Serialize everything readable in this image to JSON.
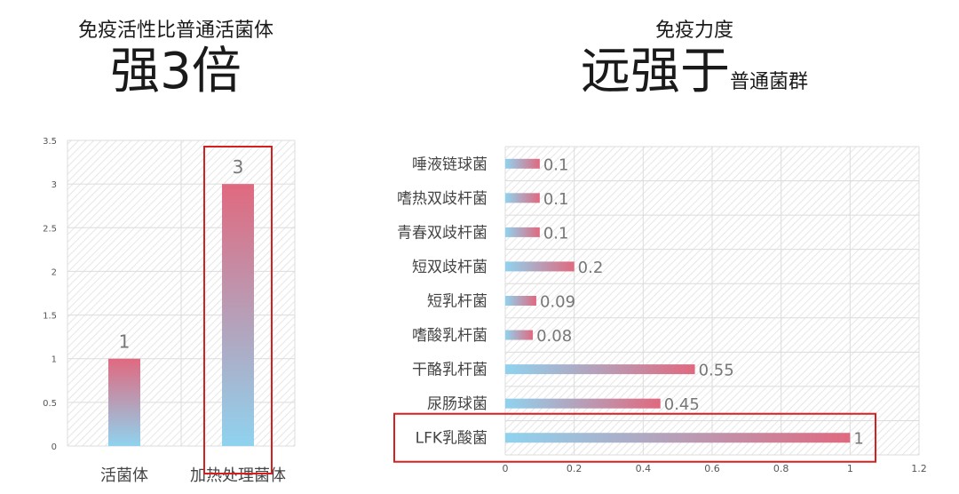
{
  "left": {
    "subtitle": "免疫活性比普通活菌体",
    "headline": "强3倍"
  },
  "right": {
    "subtitle": "免疫力度",
    "headline": "远强于",
    "headline_suffix": "普通菌群"
  },
  "colors": {
    "bar_top": "#e0697f",
    "bar_bottom": "#8fd3ef",
    "highlight": "#d42020",
    "grid": "#dcdcdc",
    "hatch": "#e6e6e6"
  },
  "chart_data": [
    {
      "type": "bar",
      "categories": [
        "活菌体",
        "加热处理菌体"
      ],
      "values": [
        1,
        3
      ],
      "ylim": [
        0,
        3.5
      ],
      "yticks": [
        "0",
        "0.5",
        "1",
        "1.5",
        "2",
        "2.5",
        "3",
        "3.5"
      ],
      "data_labels": [
        "1",
        "3"
      ],
      "highlighted_category": "加热处理菌体",
      "grid": true
    },
    {
      "type": "bar",
      "orientation": "horizontal",
      "categories": [
        "唾液链球菌",
        "嗜热双歧杆菌",
        "青春双歧杆菌",
        "短双歧杆菌",
        "短乳杆菌",
        "嗜酸乳杆菌",
        "干酪乳杆菌",
        "尿肠球菌",
        "LFK乳酸菌"
      ],
      "values": [
        0.1,
        0.1,
        0.1,
        0.2,
        0.09,
        0.08,
        0.55,
        0.45,
        1
      ],
      "data_labels": [
        "0.1",
        "0.1",
        "0.1",
        "0.2",
        "0.09",
        "0.08",
        "0.55",
        "0.45",
        "1"
      ],
      "xlim": [
        0,
        1.2
      ],
      "xticks": [
        "0",
        "0.2",
        "0.4",
        "0.6",
        "0.8",
        "1",
        "1.2"
      ],
      "highlighted_category": "LFK乳酸菌",
      "grid": true
    }
  ]
}
